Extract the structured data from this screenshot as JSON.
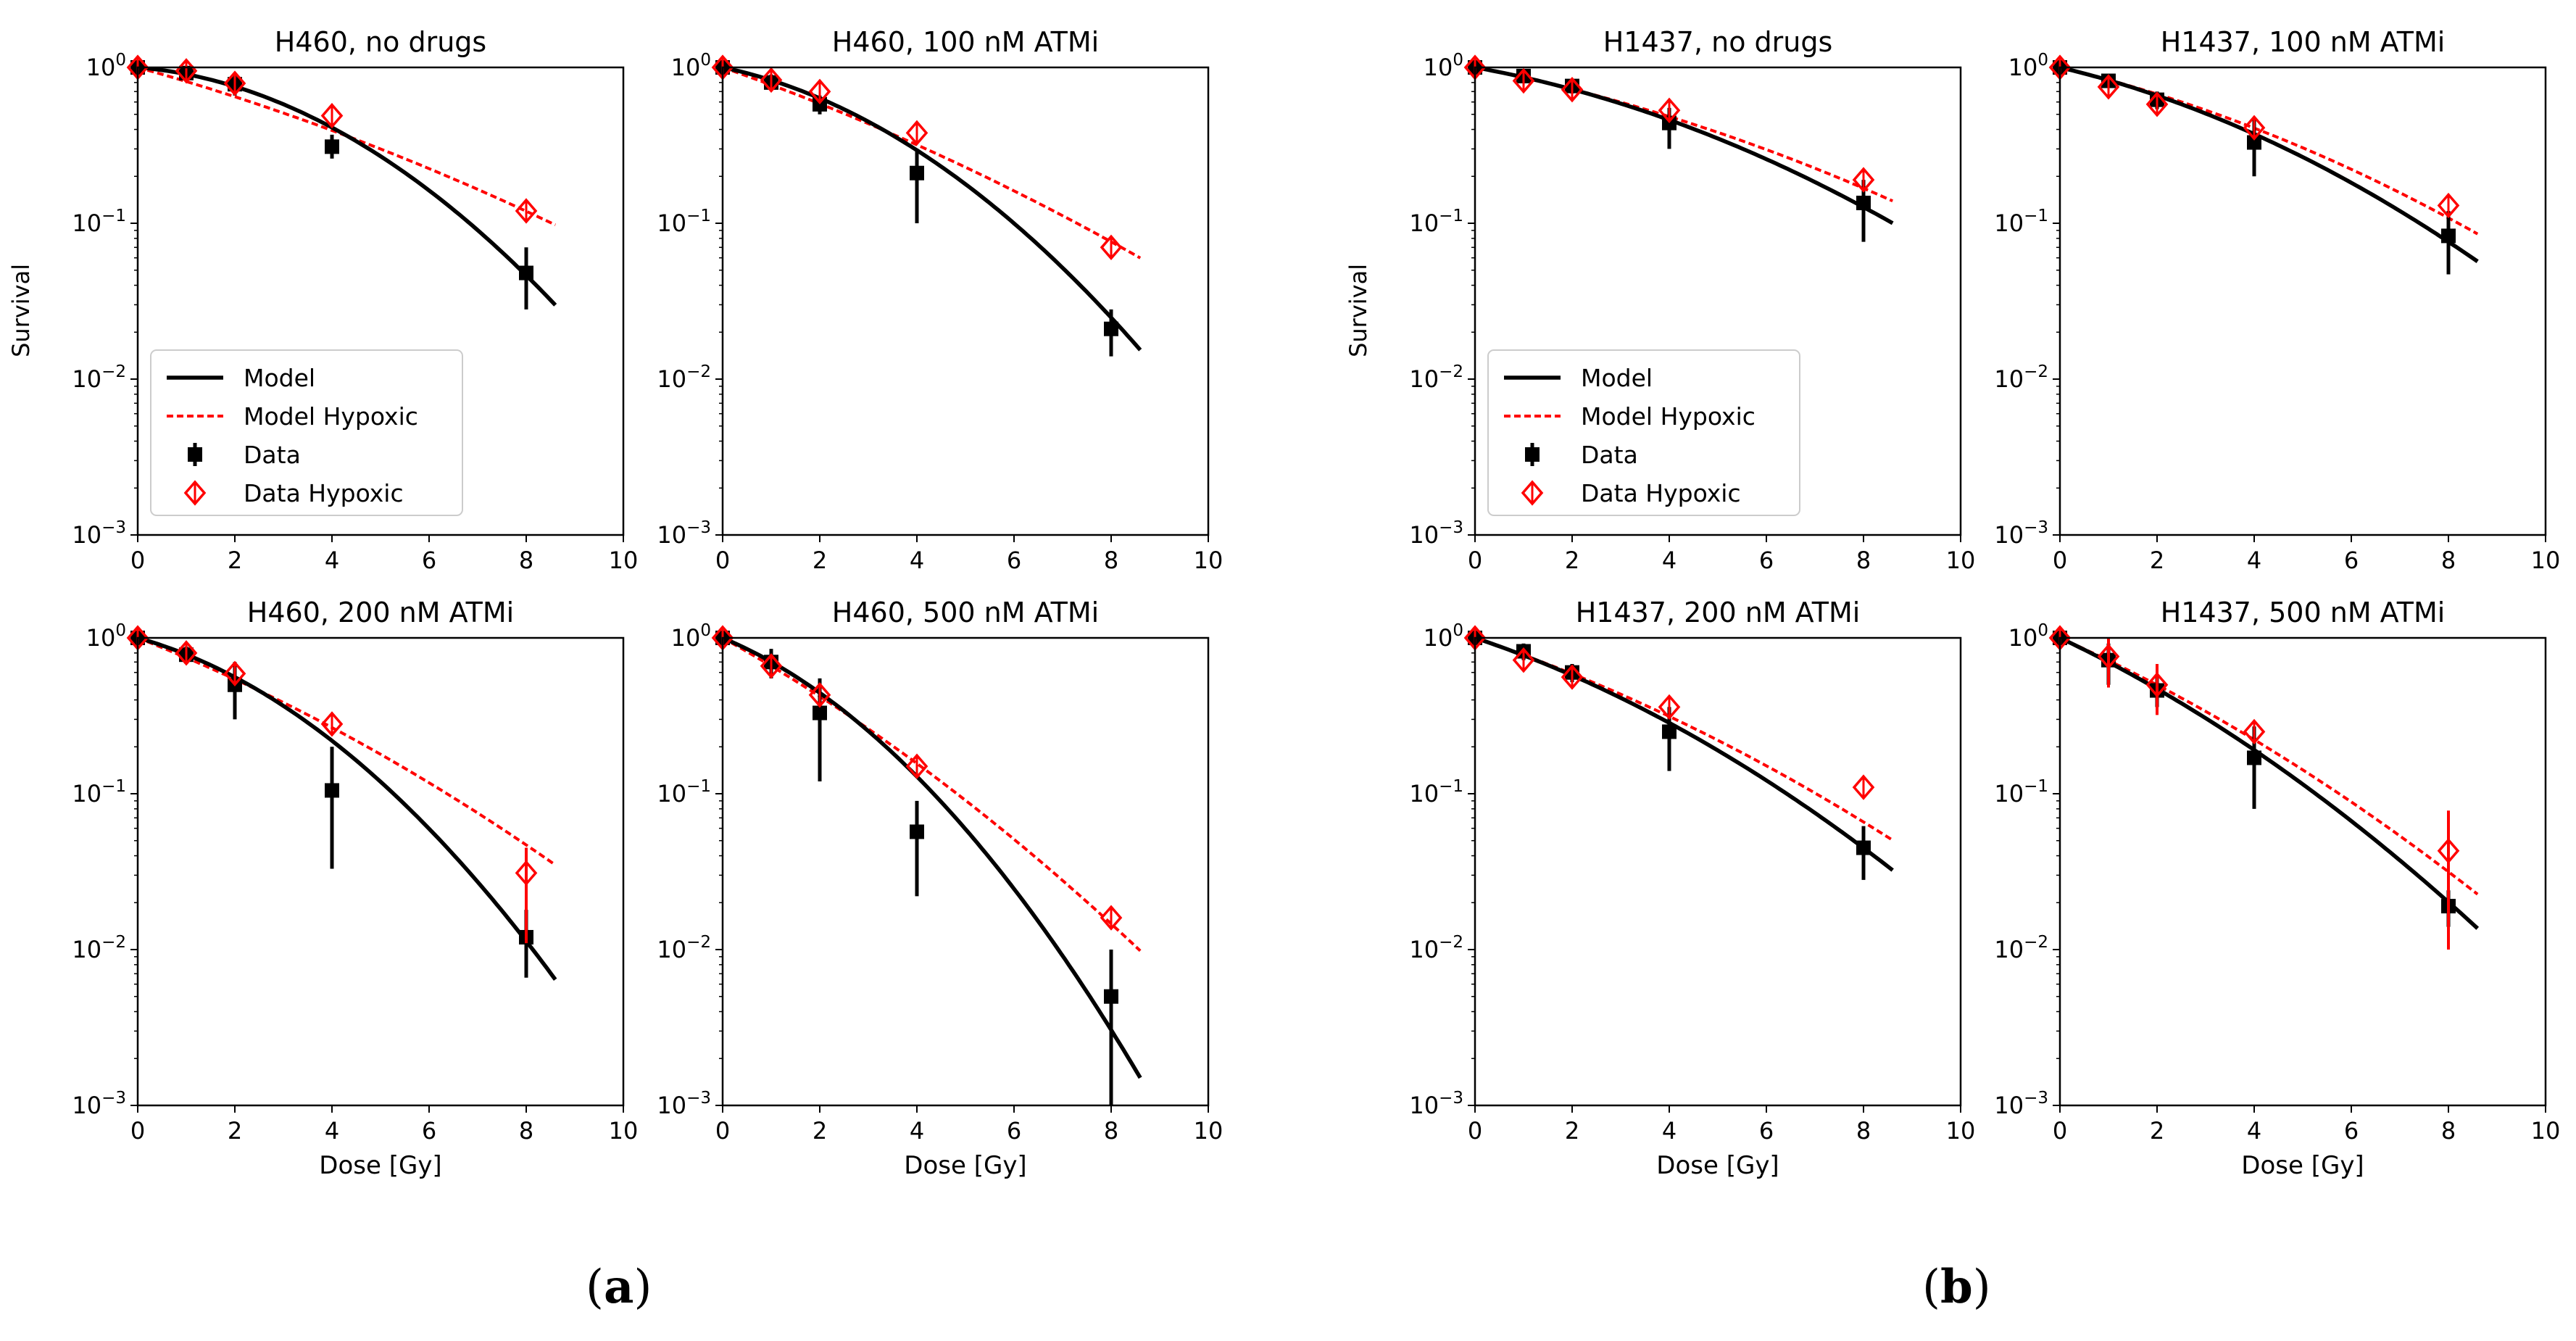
{
  "panel_labels": {
    "a": {
      "open": "(",
      "letter": "a",
      "close": ")"
    },
    "b": {
      "open": "(",
      "letter": "b",
      "close": ")"
    }
  },
  "colors": {
    "model": "#000000",
    "hypoxic": "#ff0000"
  },
  "legend": {
    "model": "Model",
    "model_hypoxic": "Model Hypoxic",
    "data": "Data",
    "data_hypoxic": "Data Hypoxic"
  },
  "chart_data": [
    {
      "type": "line",
      "title": "H460, no drugs",
      "xlabel": "",
      "ylabel": "Survival",
      "xlim": [
        0,
        10
      ],
      "ylim": [
        0.001,
        1
      ],
      "yscale": "log",
      "legend": "lower-left",
      "x_ticks": [
        "0",
        "2",
        "4",
        "6",
        "8",
        "10"
      ],
      "y_ticks": [
        {
          "base": "10",
          "exp": "0"
        },
        {
          "base": "10",
          "exp": "−1"
        },
        {
          "base": "10",
          "exp": "−2"
        },
        {
          "base": "10",
          "exp": "−3"
        }
      ],
      "model": {
        "alpha": 0.06,
        "beta": 0.0405,
        "xmax": 8.6
      },
      "model_hypoxic": {
        "alpha": 0.2,
        "beta": 0.0082,
        "xmax": 8.6
      },
      "data": [
        {
          "x": 0,
          "y": 1.0
        },
        {
          "x": 1,
          "y": 0.92,
          "lo": 0.82,
          "hi": 1.02
        },
        {
          "x": 2,
          "y": 0.78,
          "lo": 0.66,
          "hi": 0.9
        },
        {
          "x": 4,
          "y": 0.31,
          "lo": 0.26,
          "hi": 0.37
        },
        {
          "x": 8,
          "y": 0.048,
          "lo": 0.028,
          "hi": 0.07
        }
      ],
      "data_hypoxic": [
        {
          "x": 0,
          "y": 1.0
        },
        {
          "x": 1,
          "y": 0.95
        },
        {
          "x": 2,
          "y": 0.79
        },
        {
          "x": 4,
          "y": 0.49
        },
        {
          "x": 8,
          "y": 0.12
        }
      ]
    },
    {
      "type": "line",
      "title": "H460, 100 nM ATMi",
      "xlabel": "",
      "ylabel": "",
      "xlim": [
        0,
        10
      ],
      "ylim": [
        0.001,
        1
      ],
      "yscale": "log",
      "legend": "none",
      "x_ticks": [
        "0",
        "2",
        "4",
        "6",
        "8",
        "10"
      ],
      "y_ticks": [
        {
          "base": "10",
          "exp": "0"
        },
        {
          "base": "10",
          "exp": "−1"
        },
        {
          "base": "10",
          "exp": "−2"
        },
        {
          "base": "10",
          "exp": "−3"
        }
      ],
      "model": {
        "alpha": 0.15,
        "beta": 0.039,
        "xmax": 8.6
      },
      "model_hypoxic": {
        "alpha": 0.25,
        "beta": 0.009,
        "xmax": 8.6
      },
      "data": [
        {
          "x": 0,
          "y": 1.0
        },
        {
          "x": 1,
          "y": 0.8,
          "lo": 0.72,
          "hi": 0.9
        },
        {
          "x": 2,
          "y": 0.58,
          "lo": 0.5,
          "hi": 0.66
        },
        {
          "x": 4,
          "y": 0.21,
          "lo": 0.1,
          "hi": 0.3
        },
        {
          "x": 8,
          "y": 0.021,
          "lo": 0.014,
          "hi": 0.028
        }
      ],
      "data_hypoxic": [
        {
          "x": 0,
          "y": 1.0
        },
        {
          "x": 1,
          "y": 0.83
        },
        {
          "x": 2,
          "y": 0.7
        },
        {
          "x": 4,
          "y": 0.38
        },
        {
          "x": 8,
          "y": 0.07
        }
      ]
    },
    {
      "type": "line",
      "title": "H460, 200 nM ATMi",
      "xlabel": "Dose [Gy]",
      "ylabel": "",
      "xlim": [
        0,
        10
      ],
      "ylim": [
        0.001,
        1
      ],
      "yscale": "log",
      "legend": "none",
      "x_ticks": [
        "0",
        "2",
        "4",
        "6",
        "8",
        "10"
      ],
      "y_ticks": [
        {
          "base": "10",
          "exp": "0"
        },
        {
          "base": "10",
          "exp": "−1"
        },
        {
          "base": "10",
          "exp": "−2"
        },
        {
          "base": "10",
          "exp": "−3"
        }
      ],
      "model": {
        "alpha": 0.2,
        "beta": 0.045,
        "xmax": 8.6
      },
      "model_hypoxic": {
        "alpha": 0.28,
        "beta": 0.0128,
        "xmax": 8.6
      },
      "data": [
        {
          "x": 0,
          "y": 1.0
        },
        {
          "x": 1,
          "y": 0.78,
          "lo": 0.68,
          "hi": 0.88
        },
        {
          "x": 2,
          "y": 0.5,
          "lo": 0.3,
          "hi": 0.7
        },
        {
          "x": 4,
          "y": 0.105,
          "lo": 0.033,
          "hi": 0.2
        },
        {
          "x": 8,
          "y": 0.012,
          "lo": 0.0066,
          "hi": 0.018
        }
      ],
      "data_hypoxic": [
        {
          "x": 0,
          "y": 1.0
        },
        {
          "x": 1,
          "y": 0.8
        },
        {
          "x": 2,
          "y": 0.59
        },
        {
          "x": 4,
          "y": 0.28
        },
        {
          "x": 8,
          "y": 0.031,
          "lo": 0.011,
          "hi": 0.045
        }
      ]
    },
    {
      "type": "line",
      "title": "H460, 500 nM ATMi",
      "xlabel": "Dose [Gy]",
      "ylabel": "",
      "xlim": [
        0,
        10
      ],
      "ylim": [
        0.001,
        1
      ],
      "yscale": "log",
      "legend": "none",
      "x_ticks": [
        "0",
        "2",
        "4",
        "6",
        "8",
        "10"
      ],
      "y_ticks": [
        {
          "base": "10",
          "exp": "0"
        },
        {
          "base": "10",
          "exp": "−1"
        },
        {
          "base": "10",
          "exp": "−2"
        },
        {
          "base": "10",
          "exp": "−3"
        }
      ],
      "model": {
        "alpha": 0.3,
        "beta": 0.053,
        "xmax": 8.6
      },
      "model_hypoxic": {
        "alpha": 0.4,
        "beta": 0.016,
        "xmax": 8.6
      },
      "data": [
        {
          "x": 0,
          "y": 1.0
        },
        {
          "x": 1,
          "y": 0.7,
          "lo": 0.55,
          "hi": 0.85
        },
        {
          "x": 2,
          "y": 0.33,
          "lo": 0.12,
          "hi": 0.55
        },
        {
          "x": 4,
          "y": 0.057,
          "lo": 0.022,
          "hi": 0.09
        },
        {
          "x": 8,
          "y": 0.005,
          "lo": 0.001,
          "hi": 0.01
        }
      ],
      "data_hypoxic": [
        {
          "x": 0,
          "y": 1.0
        },
        {
          "x": 1,
          "y": 0.66
        },
        {
          "x": 2,
          "y": 0.43
        },
        {
          "x": 4,
          "y": 0.15
        },
        {
          "x": 8,
          "y": 0.016
        }
      ]
    },
    {
      "type": "line",
      "title": "H1437, no drugs",
      "xlabel": "",
      "ylabel": "Survival",
      "xlim": [
        0,
        10
      ],
      "ylim": [
        0.001,
        1
      ],
      "yscale": "log",
      "legend": "lower-left",
      "x_ticks": [
        "0",
        "2",
        "4",
        "6",
        "8",
        "10"
      ],
      "y_ticks": [
        {
          "base": "10",
          "exp": "0"
        },
        {
          "base": "10",
          "exp": "−1"
        },
        {
          "base": "10",
          "exp": "−2"
        },
        {
          "base": "10",
          "exp": "−3"
        }
      ],
      "model": {
        "alpha": 0.13,
        "beta": 0.016,
        "xmax": 8.6
      },
      "model_hypoxic": {
        "alpha": 0.14,
        "beta": 0.0104,
        "xmax": 8.6
      },
      "data": [
        {
          "x": 0,
          "y": 1.0
        },
        {
          "x": 1,
          "y": 0.88,
          "lo": 0.8,
          "hi": 0.96
        },
        {
          "x": 2,
          "y": 0.76,
          "lo": 0.68,
          "hi": 0.84
        },
        {
          "x": 4,
          "y": 0.44,
          "lo": 0.3,
          "hi": 0.55
        },
        {
          "x": 8,
          "y": 0.135,
          "lo": 0.076,
          "hi": 0.19
        }
      ],
      "data_hypoxic": [
        {
          "x": 0,
          "y": 1.0
        },
        {
          "x": 1,
          "y": 0.82
        },
        {
          "x": 2,
          "y": 0.72
        },
        {
          "x": 4,
          "y": 0.53
        },
        {
          "x": 8,
          "y": 0.19
        }
      ]
    },
    {
      "type": "line",
      "title": "H1437, 100 nM ATMi",
      "xlabel": "",
      "ylabel": "",
      "xlim": [
        0,
        10
      ],
      "ylim": [
        0.001,
        1
      ],
      "yscale": "log",
      "legend": "none",
      "x_ticks": [
        "0",
        "2",
        "4",
        "6",
        "8",
        "10"
      ],
      "y_ticks": [
        {
          "base": "10",
          "exp": "0"
        },
        {
          "base": "10",
          "exp": "−1"
        },
        {
          "base": "10",
          "exp": "−2"
        },
        {
          "base": "10",
          "exp": "−3"
        }
      ],
      "model": {
        "alpha": 0.17,
        "beta": 0.019,
        "xmax": 8.6
      },
      "model_hypoxic": {
        "alpha": 0.17,
        "beta": 0.0135,
        "xmax": 8.6
      },
      "data": [
        {
          "x": 0,
          "y": 1.0
        },
        {
          "x": 1,
          "y": 0.82,
          "lo": 0.74,
          "hi": 0.9
        },
        {
          "x": 2,
          "y": 0.62,
          "lo": 0.54,
          "hi": 0.7
        },
        {
          "x": 4,
          "y": 0.33,
          "lo": 0.2,
          "hi": 0.46
        },
        {
          "x": 8,
          "y": 0.083,
          "lo": 0.047,
          "hi": 0.12
        }
      ],
      "data_hypoxic": [
        {
          "x": 0,
          "y": 1.0
        },
        {
          "x": 1,
          "y": 0.75
        },
        {
          "x": 2,
          "y": 0.58
        },
        {
          "x": 4,
          "y": 0.41
        },
        {
          "x": 8,
          "y": 0.13
        }
      ]
    },
    {
      "type": "line",
      "title": "H1437, 200 nM ATMi",
      "xlabel": "Dose [Gy]",
      "ylabel": "",
      "xlim": [
        0,
        10
      ],
      "ylim": [
        0.001,
        1
      ],
      "yscale": "log",
      "legend": "none",
      "x_ticks": [
        "0",
        "2",
        "4",
        "6",
        "8",
        "10"
      ],
      "y_ticks": [
        {
          "base": "10",
          "exp": "0"
        },
        {
          "base": "10",
          "exp": "−1"
        },
        {
          "base": "10",
          "exp": "−2"
        },
        {
          "base": "10",
          "exp": "−3"
        }
      ],
      "model": {
        "alpha": 0.24,
        "beta": 0.0185,
        "xmax": 8.6
      },
      "model_hypoxic": {
        "alpha": 0.24,
        "beta": 0.0125,
        "xmax": 8.6
      },
      "data": [
        {
          "x": 0,
          "y": 1.0
        },
        {
          "x": 1,
          "y": 0.82,
          "lo": 0.72,
          "hi": 0.92
        },
        {
          "x": 2,
          "y": 0.6,
          "lo": 0.52,
          "hi": 0.68
        },
        {
          "x": 4,
          "y": 0.25,
          "lo": 0.14,
          "hi": 0.36
        },
        {
          "x": 8,
          "y": 0.045,
          "lo": 0.028,
          "hi": 0.062
        }
      ],
      "data_hypoxic": [
        {
          "x": 0,
          "y": 1.0
        },
        {
          "x": 1,
          "y": 0.72
        },
        {
          "x": 2,
          "y": 0.56
        },
        {
          "x": 4,
          "y": 0.36
        },
        {
          "x": 8,
          "y": 0.11
        }
      ]
    },
    {
      "type": "line",
      "title": "H1437, 500 nM ATMi",
      "xlabel": "Dose [Gy]",
      "ylabel": "",
      "xlim": [
        0,
        10
      ],
      "ylim": [
        0.001,
        1
      ],
      "yscale": "log",
      "legend": "none",
      "x_ticks": [
        "0",
        "2",
        "4",
        "6",
        "8",
        "10"
      ],
      "y_ticks": [
        {
          "base": "10",
          "exp": "0"
        },
        {
          "base": "10",
          "exp": "−1"
        },
        {
          "base": "10",
          "exp": "−2"
        },
        {
          "base": "10",
          "exp": "−3"
        }
      ],
      "model": {
        "alpha": 0.34,
        "beta": 0.0185,
        "xmax": 8.6
      },
      "model_hypoxic": {
        "alpha": 0.32,
        "beta": 0.014,
        "xmax": 8.6
      },
      "data": [
        {
          "x": 0,
          "y": 1.0
        },
        {
          "x": 1,
          "y": 0.72,
          "lo": 0.5,
          "hi": 0.92
        },
        {
          "x": 2,
          "y": 0.46,
          "lo": 0.36,
          "hi": 0.56
        },
        {
          "x": 4,
          "y": 0.17,
          "lo": 0.08,
          "hi": 0.27
        },
        {
          "x": 8,
          "y": 0.019,
          "lo": 0.014,
          "hi": 0.024
        }
      ],
      "data_hypoxic": [
        {
          "x": 0,
          "y": 1.0
        },
        {
          "x": 1,
          "y": 0.76,
          "lo": 0.48,
          "hi": 1.0
        },
        {
          "x": 2,
          "y": 0.5,
          "lo": 0.32,
          "hi": 0.68
        },
        {
          "x": 4,
          "y": 0.25
        },
        {
          "x": 8,
          "y": 0.043,
          "lo": 0.01,
          "hi": 0.078
        }
      ]
    }
  ]
}
